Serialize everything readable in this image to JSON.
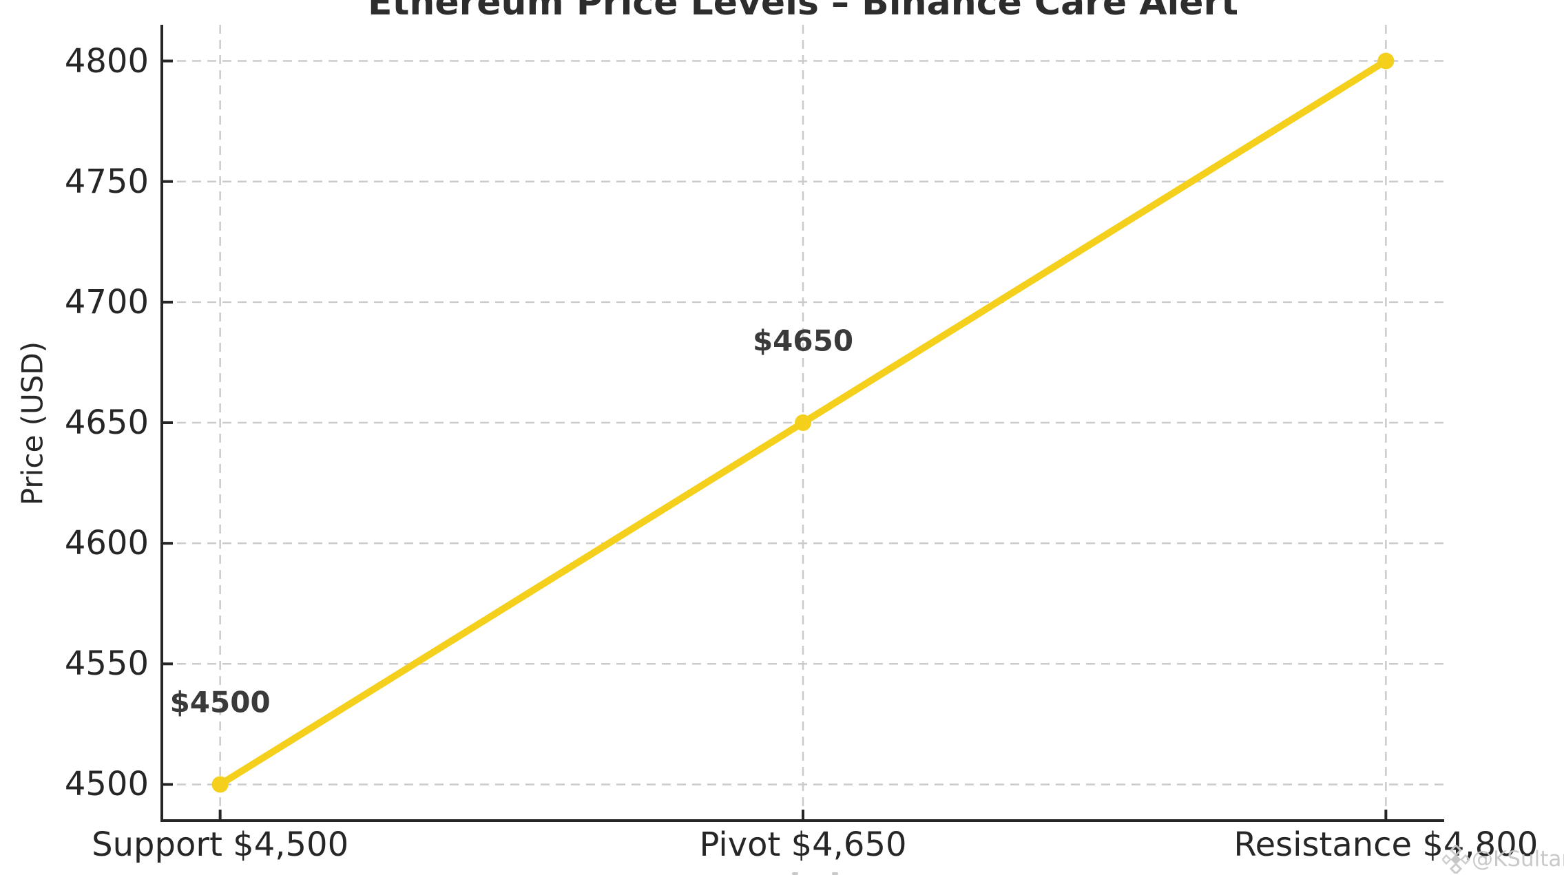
{
  "chart_data": {
    "type": "line",
    "title": "Ethereum Price Levels – Binance Care Alert",
    "xlabel": "",
    "ylabel": "Price (USD)",
    "categories": [
      "Support $4,500",
      "Pivot $4,650",
      "Resistance $4,800"
    ],
    "series": [
      {
        "values": [
          4500,
          4650,
          4800
        ],
        "color": "#F4D01C",
        "marker": "circle"
      }
    ],
    "point_labels": [
      "$4500",
      "$4650",
      null
    ],
    "yticks": [
      4500,
      4550,
      4600,
      4650,
      4700,
      4750,
      4800
    ],
    "ylim": [
      4485,
      4815
    ],
    "xlim": [
      -0.1,
      2.1
    ],
    "grid": "dashed",
    "legend": "none"
  },
  "watermark": {
    "icon": "binance-logo-icon",
    "text": "@KSultan"
  },
  "colors": {
    "background": "#ffffff",
    "line": "#F4D01C",
    "marker": "#F4D01C",
    "grid": "#cbcbcb",
    "axis": "#262626",
    "tick_text": "#262626",
    "title_text": "#2d2d2d",
    "point_label_text": "#3a3a3a",
    "watermark_text": "#c7c7c7"
  }
}
